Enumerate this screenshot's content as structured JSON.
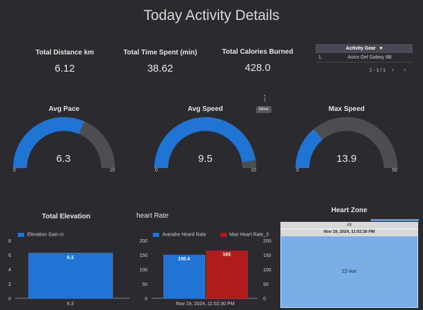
{
  "title": "Today Activity Details",
  "kpis": [
    {
      "label": "Total Distance km",
      "value": "6.12"
    },
    {
      "label": "Total Time Spent (min)",
      "value": "38.62"
    },
    {
      "label": "Total Calories Burned",
      "value": "428.0"
    }
  ],
  "gear_table": {
    "header": "Activity Gear",
    "sort_icon": "▾",
    "rows": [
      {
        "index": "1.",
        "value": "Asics Gel Galaxy 8B"
      }
    ],
    "pagination": "1 - 1 / 1",
    "prev": "‹",
    "next": "›"
  },
  "more_menu": {
    "icon": "⋮",
    "tooltip": "More"
  },
  "gauges": [
    {
      "title": "Avg Pace",
      "value": "6.3",
      "numeric": 6.3,
      "min": "0",
      "max": "10",
      "max_num": 10
    },
    {
      "title": "Avg Speed",
      "value": "9.5",
      "numeric": 9.5,
      "min": "0",
      "max": "10",
      "max_num": 10
    },
    {
      "title": "Max Speed",
      "value": "13.9",
      "numeric": 13.9,
      "min": "0",
      "max": "50",
      "max_num": 50
    }
  ],
  "elevation_chart": {
    "title": "Total Elevation",
    "legend": "Elevation Gain m",
    "categories": [
      "6.3"
    ],
    "values": [
      6.3
    ],
    "value_label": "6.3",
    "yticks": [
      "8",
      "6",
      "4",
      "2",
      "0"
    ],
    "ylim": [
      0,
      8
    ]
  },
  "heart_chart": {
    "title": "heart Rate",
    "legend": [
      "Averahe Heard Rate",
      "Max Heart Rate_3"
    ],
    "category": "Nov 19, 2024, 11:02:30 PM",
    "values": [
      150.4,
      165
    ],
    "value_labels": [
      "150.4",
      "165"
    ],
    "yticks": [
      "200",
      "150",
      "100",
      "50",
      "0"
    ],
    "ylim": [
      0,
      200
    ]
  },
  "heart_zone": {
    "title": "Heart Zone",
    "all_label": "All",
    "date_label": "Nov 19, 2024, 11:02:30 PM",
    "zone_label": "Z2-Aer"
  },
  "colors": {
    "background": "#2b2b2f",
    "blue": "#1f74d4",
    "gauge_track": "#4d4d52",
    "red": "#b01c1c",
    "treemap": "#7aaee6"
  },
  "chart_data": [
    {
      "type": "bar",
      "title": "Total Elevation",
      "categories": [
        "6.3"
      ],
      "series": [
        {
          "name": "Elevation Gain m",
          "values": [
            6.3
          ]
        }
      ],
      "ylim": [
        0,
        8
      ]
    },
    {
      "type": "bar",
      "title": "heart Rate",
      "categories": [
        "Nov 19, 2024, 11:02:30 PM"
      ],
      "series": [
        {
          "name": "Averahe Heard Rate",
          "values": [
            150.4
          ]
        },
        {
          "name": "Max Heart Rate_3",
          "values": [
            165
          ]
        }
      ],
      "ylim": [
        0,
        200
      ]
    }
  ]
}
